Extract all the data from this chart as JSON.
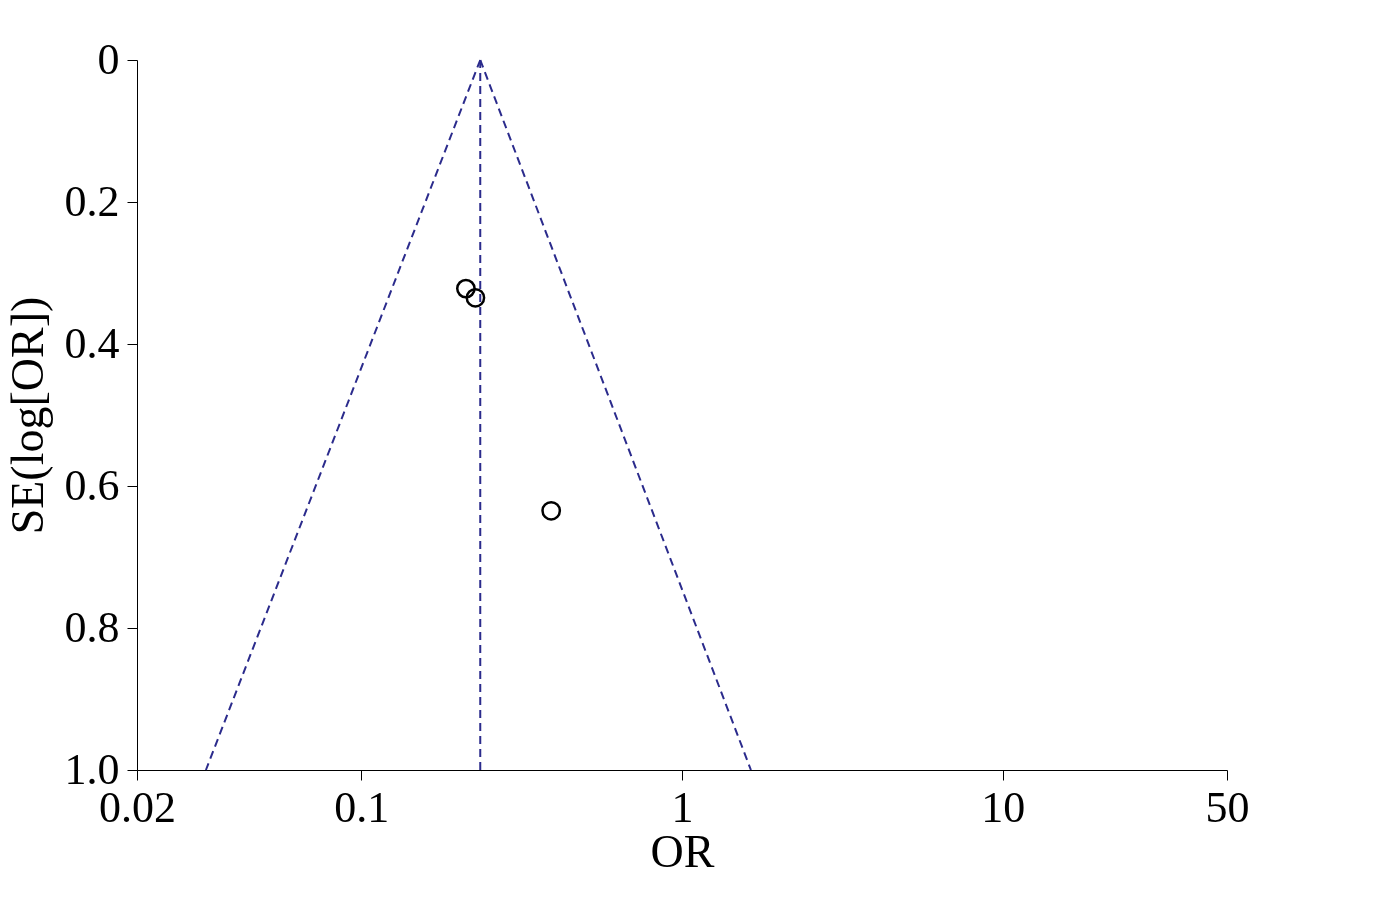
{
  "chart_data": {
    "type": "scatter",
    "xlabel": "OR",
    "ylabel": "SE(log[OR])",
    "log": "x",
    "xlim": [
      0.02,
      50
    ],
    "xticks": [
      0.02,
      0.1,
      1,
      10,
      50
    ],
    "ylim": [
      1.0,
      0
    ],
    "yticks": [
      0,
      0.2,
      0.4,
      0.6,
      0.8,
      {
        "value": 1.0,
        "label": "1.0"
      }
    ],
    "grid": false,
    "series": [
      {
        "type": "line",
        "color": "#2b2b8c",
        "line_style": "dashed",
        "marker": "none",
        "x": [
          0.235,
          0.0328
        ],
        "values": [
          0,
          1.0
        ]
      },
      {
        "type": "line",
        "color": "#2b2b8c",
        "line_style": "dashed",
        "marker": "none",
        "x": [
          0.235,
          1.64
        ],
        "values": [
          0,
          1.0
        ]
      },
      {
        "type": "line",
        "color": "#2b2b8c",
        "line_style": "dashed",
        "marker": "none",
        "x": [
          0.235,
          0.235
        ],
        "values": [
          0,
          1.0
        ]
      },
      {
        "color": "#000000",
        "marker": "circle",
        "x": [
          0.212,
          0.227,
          0.391
        ],
        "values": [
          0.322,
          0.335,
          0.635
        ]
      }
    ]
  }
}
